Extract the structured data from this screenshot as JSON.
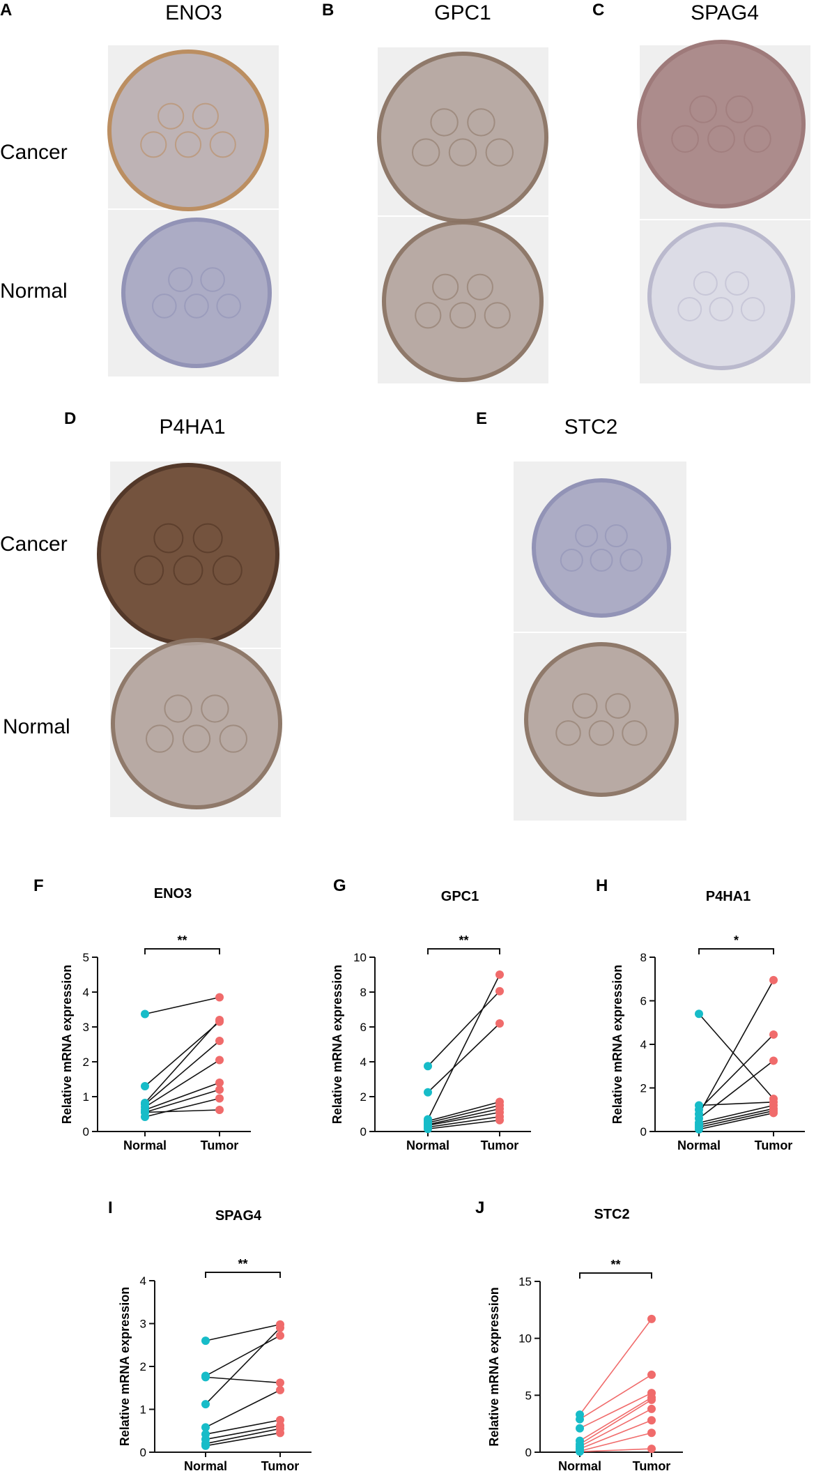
{
  "colors": {
    "normal": "#17bcc8",
    "tumor": "#f06b6b",
    "line": "#111111",
    "stain_panel_bg": "#efefef"
  },
  "ihc_panels": [
    {
      "letter": "A",
      "gene": "ENO3",
      "row_labels": [
        "Cancer",
        "Normal"
      ],
      "cancer_stain": "brown-border",
      "normal_stain": "blue"
    },
    {
      "letter": "B",
      "gene": "GPC1",
      "row_labels": [],
      "cancer_stain": "mixed",
      "normal_stain": "mixed"
    },
    {
      "letter": "C",
      "gene": "SPAG4",
      "row_labels": [],
      "cancer_stain": "mauve",
      "normal_stain": "pale"
    },
    {
      "letter": "D",
      "gene": "P4HA1",
      "row_labels": [
        "Cancer",
        "Normal"
      ],
      "cancer_stain": "dark-brown",
      "normal_stain": "mixed"
    },
    {
      "letter": "E",
      "gene": "STC2",
      "row_labels": [],
      "cancer_stain": "blue",
      "normal_stain": "mixed"
    }
  ],
  "chart_data": [
    {
      "letter": "F",
      "type": "paired-scatter",
      "title": "ENO3",
      "categories": [
        "Normal",
        "Tumor"
      ],
      "xlabel": "",
      "ylabel": "Relative mRNA expression",
      "ylim": [
        0,
        5
      ],
      "yticks": [
        0,
        1,
        2,
        3,
        4,
        5
      ],
      "significance": "**",
      "normal": [
        3.37,
        1.3,
        0.82,
        0.78,
        0.7,
        0.62,
        0.55,
        0.42,
        0.55
      ],
      "tumor": [
        3.85,
        3.2,
        3.15,
        2.6,
        2.05,
        1.4,
        1.2,
        0.95,
        0.62
      ],
      "pairs": [
        [
          0,
          0
        ],
        [
          1,
          2
        ],
        [
          2,
          1
        ],
        [
          3,
          3
        ],
        [
          4,
          4
        ],
        [
          5,
          5
        ],
        [
          6,
          6
        ],
        [
          7,
          7
        ],
        [
          8,
          8
        ]
      ],
      "line_color": "black"
    },
    {
      "letter": "G",
      "type": "paired-scatter",
      "title": "GPC1",
      "categories": [
        "Normal",
        "Tumor"
      ],
      "xlabel": "",
      "ylabel": "Relative mRNA expression",
      "ylim": [
        0,
        10
      ],
      "yticks": [
        0,
        2,
        4,
        6,
        8,
        10
      ],
      "significance": "**",
      "normal": [
        3.75,
        2.25,
        0.7,
        0.6,
        0.5,
        0.4,
        0.35,
        0.25,
        0.15
      ],
      "tumor": [
        9.0,
        8.05,
        6.2,
        1.7,
        1.5,
        1.3,
        1.1,
        0.85,
        0.65
      ],
      "pairs": [
        [
          0,
          1
        ],
        [
          1,
          2
        ],
        [
          2,
          0
        ],
        [
          3,
          3
        ],
        [
          4,
          4
        ],
        [
          5,
          5
        ],
        [
          6,
          6
        ],
        [
          7,
          7
        ],
        [
          8,
          8
        ]
      ],
      "line_color": "black"
    },
    {
      "letter": "H",
      "type": "paired-scatter",
      "title": "P4HA1",
      "categories": [
        "Normal",
        "Tumor"
      ],
      "xlabel": "",
      "ylabel": "Relative mRNA expression",
      "ylim": [
        0,
        8
      ],
      "yticks": [
        0,
        2,
        4,
        6,
        8
      ],
      "significance": "*",
      "normal": [
        5.4,
        1.2,
        1.0,
        0.8,
        0.6,
        0.4,
        0.3,
        0.2,
        0.1
      ],
      "tumor": [
        6.95,
        4.45,
        3.25,
        1.5,
        1.35,
        1.2,
        1.05,
        0.95,
        0.85
      ],
      "pairs": [
        [
          0,
          3
        ],
        [
          1,
          4
        ],
        [
          2,
          1
        ],
        [
          3,
          0
        ],
        [
          4,
          2
        ],
        [
          5,
          5
        ],
        [
          6,
          6
        ],
        [
          7,
          7
        ],
        [
          8,
          8
        ]
      ],
      "line_color": "black"
    },
    {
      "letter": "I",
      "type": "paired-scatter",
      "title": "SPAG4",
      "categories": [
        "Normal",
        "Tumor"
      ],
      "xlabel": "",
      "ylabel": "Relative mRNA expression",
      "ylim": [
        0,
        4
      ],
      "yticks": [
        0,
        1,
        2,
        3,
        4
      ],
      "significance": "**",
      "normal": [
        2.6,
        1.78,
        1.75,
        1.12,
        0.58,
        0.42,
        0.3,
        0.2,
        0.15
      ],
      "tumor": [
        2.98,
        2.9,
        2.72,
        1.62,
        1.45,
        0.75,
        0.62,
        0.55,
        0.45
      ],
      "pairs": [
        [
          0,
          0
        ],
        [
          1,
          2
        ],
        [
          2,
          3
        ],
        [
          3,
          1
        ],
        [
          4,
          4
        ],
        [
          5,
          5
        ],
        [
          6,
          6
        ],
        [
          7,
          7
        ],
        [
          8,
          8
        ]
      ],
      "line_color": "black"
    },
    {
      "letter": "J",
      "type": "paired-scatter",
      "title": "STC2",
      "categories": [
        "Normal",
        "Tumor"
      ],
      "xlabel": "",
      "ylabel": "Relative mRNA expression",
      "ylim": [
        0,
        15
      ],
      "yticks": [
        0,
        5,
        10,
        15
      ],
      "significance": "**",
      "normal": [
        3.3,
        2.9,
        2.1,
        1.0,
        0.7,
        0.5,
        0.3,
        0.1,
        0.05
      ],
      "tumor": [
        11.7,
        6.8,
        5.2,
        4.8,
        4.6,
        3.8,
        2.8,
        1.7,
        0.3
      ],
      "pairs": [
        [
          0,
          0
        ],
        [
          1,
          1
        ],
        [
          2,
          2
        ],
        [
          3,
          3
        ],
        [
          4,
          4
        ],
        [
          5,
          5
        ],
        [
          6,
          6
        ],
        [
          7,
          7
        ],
        [
          8,
          8
        ]
      ],
      "line_color": "tumor"
    }
  ]
}
